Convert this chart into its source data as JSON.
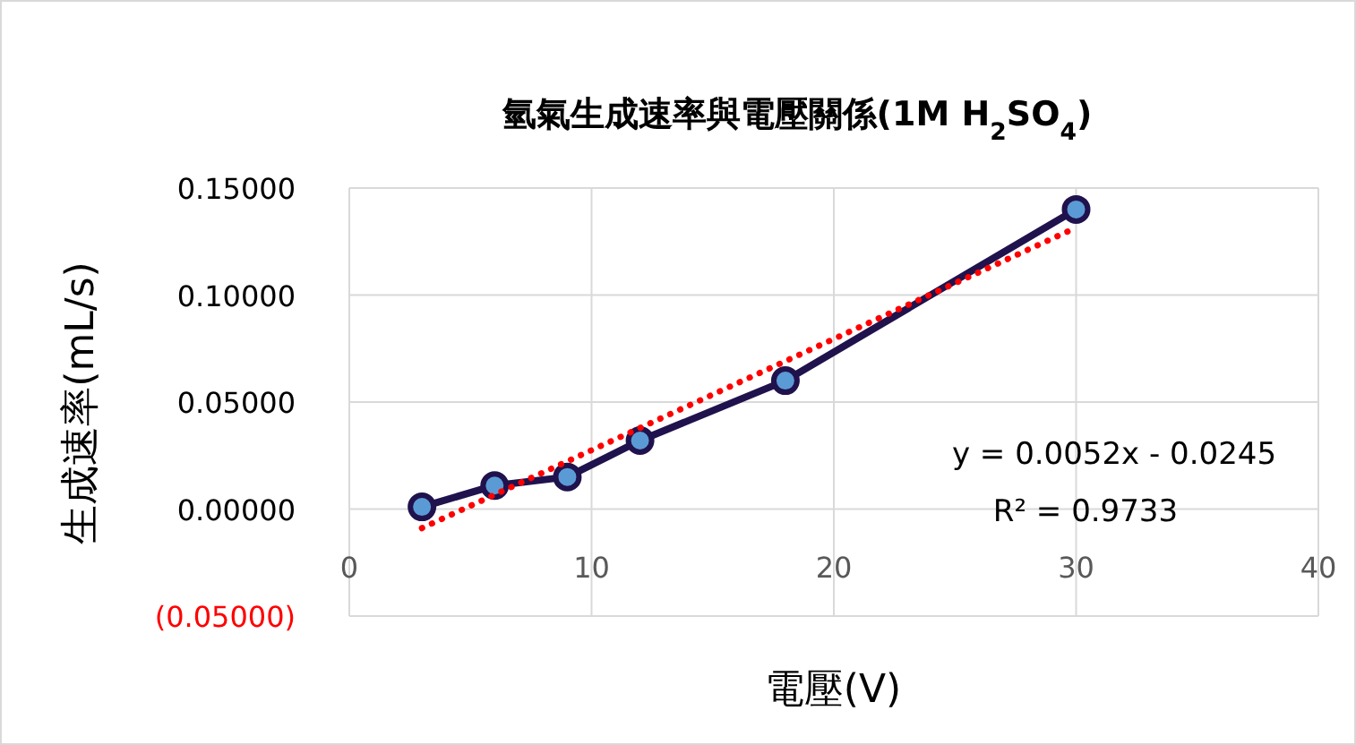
{
  "chart_data": {
    "type": "line",
    "title": "氫氣生成速率與電壓關係(1M H$_{2}$SO$_{4}$)",
    "xlabel": "電壓(V)",
    "ylabel": "生成速率(mL/s)",
    "xlim": [
      0,
      40
    ],
    "xticks": [
      0,
      10,
      20,
      30,
      40
    ],
    "ylim": [
      -0.05,
      0.15
    ],
    "yticks": [
      {
        "value": -0.05,
        "label": "(0.05000)"
      },
      {
        "value": 0,
        "label": "0.00000"
      },
      {
        "value": 0.05,
        "label": "0.05000"
      },
      {
        "value": 0.1,
        "label": "0.10000"
      },
      {
        "value": 0.15,
        "label": "0.15000"
      }
    ],
    "grid": true,
    "marker": "circle",
    "line_style": "solid",
    "series": [
      {
        "x": [
          3,
          6,
          9,
          12,
          18,
          30
        ],
        "values": [
          0.001,
          0.011,
          0.015,
          0.032,
          0.06,
          0.14
        ],
        "color": "#20124d"
      },
      {
        "type": "line",
        "x": [
          3,
          30
        ],
        "values": [
          -0.0089,
          0.1315
        ],
        "color": "#ff0000",
        "line_style": "dotted",
        "marker": "none"
      }
    ],
    "annotations": [
      "y = 0.0052x - 0.0245",
      "R² = 0.9733"
    ]
  }
}
